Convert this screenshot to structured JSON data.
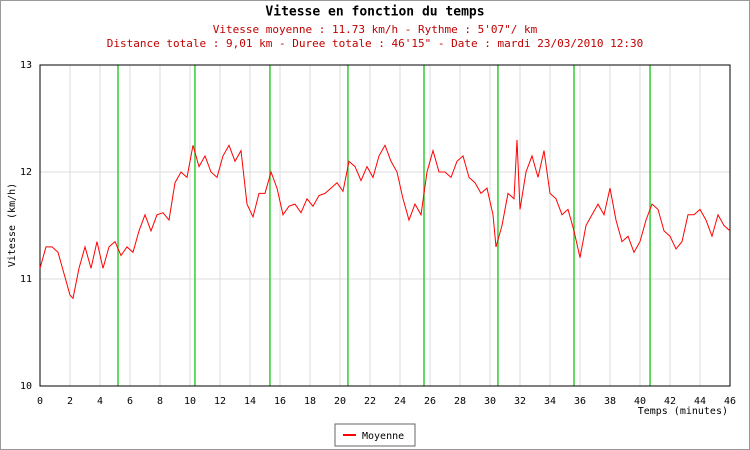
{
  "chart_data": {
    "type": "line",
    "title": "Vitesse en fonction du temps",
    "subtitle": [
      "Vitesse moyenne : 11.73 km/h - Rythme : 5'07\"/ km",
      "Distance totale : 9,01 km - Duree totale : 46'15\" - Date : mardi 23/03/2010 12:30"
    ],
    "xlabel": "Temps (minutes)",
    "ylabel": "Vitesse (km/h)",
    "xlim": [
      0,
      46
    ],
    "xticks": [
      0,
      2,
      4,
      6,
      8,
      10,
      12,
      14,
      16,
      18,
      20,
      22,
      24,
      26,
      28,
      30,
      32,
      34,
      36,
      38,
      40,
      42,
      44,
      46
    ],
    "ylim": [
      10,
      13
    ],
    "yticks": [
      10,
      11,
      12,
      13
    ],
    "grid": true,
    "legend": "bottom",
    "markers": {
      "color": "#33cc33",
      "x": [
        5.2,
        10.33,
        15.33,
        20.53,
        25.6,
        30.53,
        35.6,
        40.67
      ]
    },
    "x": [
      0,
      0.4,
      0.8,
      1.2,
      1.6,
      2.0,
      2.2,
      2.6,
      3.0,
      3.4,
      3.8,
      4.2,
      4.6,
      5.0,
      5.4,
      5.8,
      6.2,
      6.6,
      7.0,
      7.4,
      7.8,
      8.2,
      8.6,
      9.0,
      9.4,
      9.8,
      10.2,
      10.6,
      11.0,
      11.4,
      11.8,
      12.2,
      12.6,
      13.0,
      13.4,
      13.8,
      14.2,
      14.6,
      15.0,
      15.4,
      15.8,
      16.2,
      16.6,
      17.0,
      17.4,
      17.8,
      18.2,
      18.6,
      19.0,
      19.4,
      19.8,
      20.2,
      20.6,
      21.0,
      21.4,
      21.8,
      22.2,
      22.6,
      23.0,
      23.4,
      23.8,
      24.2,
      24.6,
      25.0,
      25.4,
      25.8,
      26.2,
      26.6,
      27.0,
      27.4,
      27.8,
      28.2,
      28.6,
      29.0,
      29.4,
      29.8,
      30.2,
      30.4,
      30.8,
      31.2,
      31.6,
      31.8,
      32.0,
      32.4,
      32.8,
      33.2,
      33.6,
      34.0,
      34.4,
      34.8,
      35.2,
      35.6,
      36.0,
      36.4,
      36.8,
      37.2,
      37.6,
      38.0,
      38.4,
      38.8,
      39.2,
      39.6,
      40.0,
      40.4,
      40.8,
      41.2,
      41.6,
      42.0,
      42.4,
      42.8,
      43.2,
      43.6,
      44.0,
      44.4,
      44.8,
      45.2,
      45.6,
      46.0
    ],
    "series": [
      {
        "name": "Moyenne",
        "color": "#ff0000",
        "values": [
          11.1,
          11.3,
          11.3,
          11.25,
          11.05,
          10.85,
          10.82,
          11.1,
          11.3,
          11.1,
          11.35,
          11.1,
          11.3,
          11.35,
          11.22,
          11.3,
          11.25,
          11.45,
          11.6,
          11.45,
          11.6,
          11.62,
          11.55,
          11.9,
          12.0,
          11.95,
          12.25,
          12.05,
          12.15,
          12.0,
          11.95,
          12.15,
          12.25,
          12.1,
          12.2,
          11.7,
          11.58,
          11.8,
          11.8,
          12.0,
          11.85,
          11.6,
          11.68,
          11.7,
          11.62,
          11.75,
          11.68,
          11.78,
          11.8,
          11.85,
          11.9,
          11.82,
          12.1,
          12.05,
          11.92,
          12.05,
          11.95,
          12.15,
          12.25,
          12.1,
          12.0,
          11.75,
          11.55,
          11.7,
          11.6,
          12.0,
          12.2,
          12.0,
          12.0,
          11.95,
          12.1,
          12.15,
          11.95,
          11.9,
          11.8,
          11.85,
          11.6,
          11.3,
          11.5,
          11.8,
          11.75,
          12.3,
          11.65,
          12.0,
          12.15,
          11.95,
          12.2,
          11.8,
          11.75,
          11.6,
          11.65,
          11.45,
          11.2,
          11.5,
          11.6,
          11.7,
          11.6,
          11.85,
          11.55,
          11.35,
          11.4,
          11.25,
          11.35,
          11.55,
          11.7,
          11.65,
          11.45,
          11.4,
          11.28,
          11.35,
          11.6,
          11.6,
          11.65,
          11.55,
          11.4,
          11.6,
          11.5,
          11.45
        ]
      }
    ]
  }
}
